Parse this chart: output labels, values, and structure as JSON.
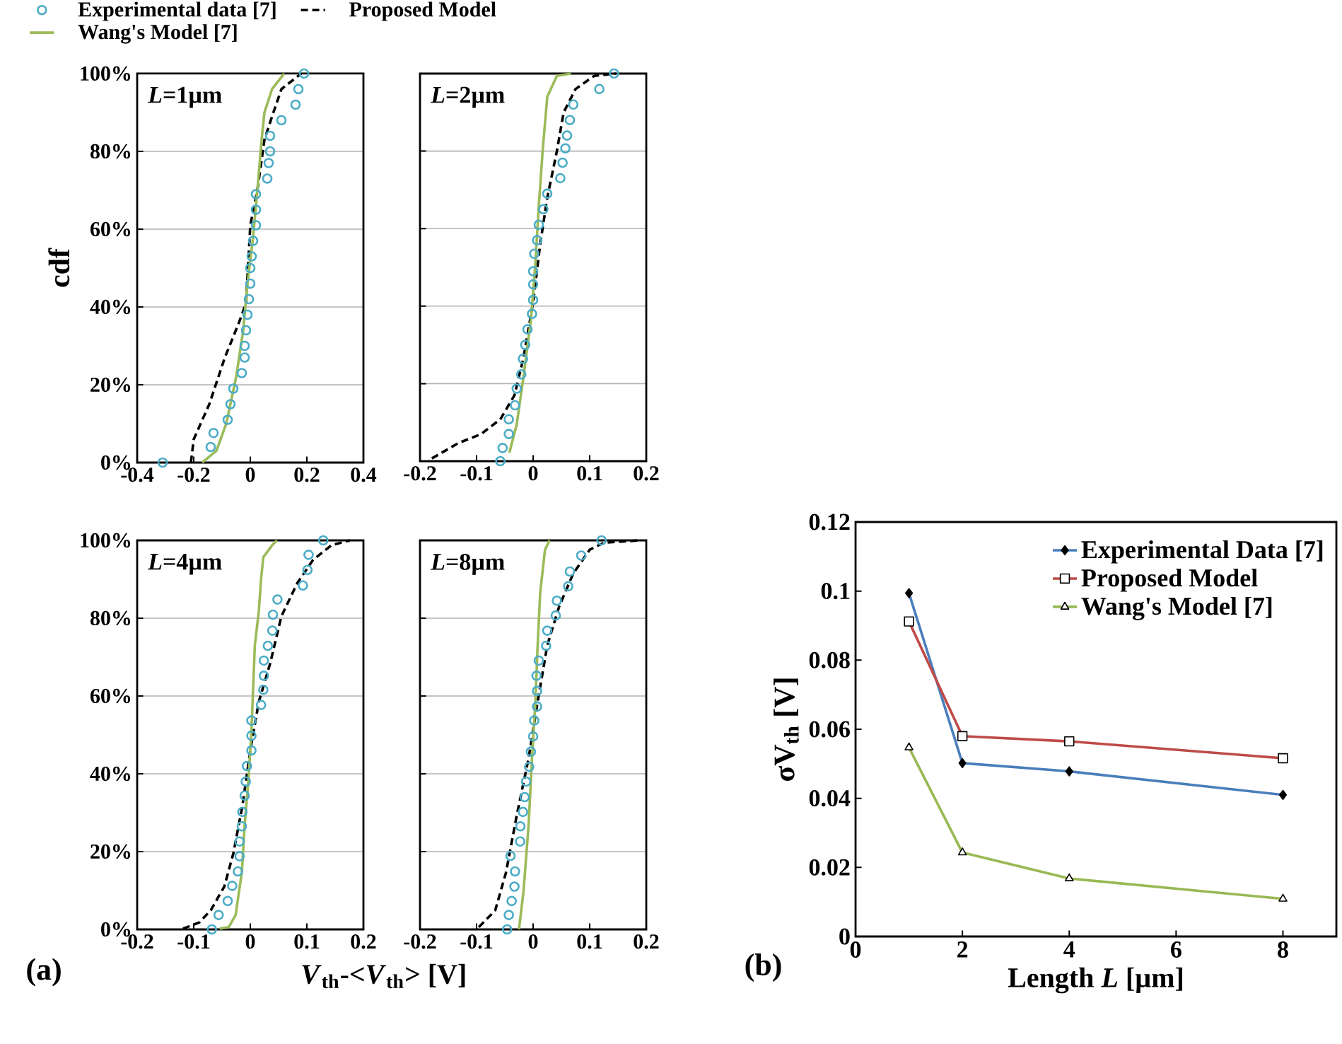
{
  "chart_data": [
    {
      "type": "scatter",
      "ylabel": "cdf",
      "annotations": [
        "*L*=1µm"
      ],
      "legend": "top",
      "grid": "y",
      "xlim": [
        -0.4,
        0.4
      ],
      "xticks": [
        -0.4,
        -0.2,
        0,
        0.2,
        0.4
      ],
      "ylim": [
        0,
        100
      ],
      "yticks": [
        {
          "value": 0,
          "label": "0%"
        },
        {
          "value": 20,
          "label": "20%"
        },
        {
          "value": 40,
          "label": "40%"
        },
        {
          "value": 60,
          "label": "60%"
        },
        {
          "value": 80,
          "label": "80%"
        },
        {
          "value": 100,
          "label": "100%"
        }
      ],
      "series": [
        {
          "name": "Experimental data [7]",
          "type": "scatter",
          "marker": "circle",
          "color": "#4bacc6",
          "x": [
            -0.31,
            -0.14,
            -0.13,
            -0.08,
            -0.07,
            -0.06,
            -0.03,
            -0.02,
            -0.02,
            -0.015,
            -0.01,
            -0.005,
            0,
            0,
            0.005,
            0.01,
            0.02,
            0.02,
            0.02,
            0.06,
            0.065,
            0.07,
            0.07,
            0.11,
            0.16,
            0.17,
            0.19
          ],
          "values": [
            0,
            4,
            7.6,
            11,
            15,
            19,
            23,
            27,
            30,
            34,
            38,
            42,
            46,
            50,
            53,
            57,
            61,
            65,
            69,
            73,
            77,
            80,
            84,
            88,
            92,
            96,
            100
          ]
        },
        {
          "name": "Proposed Model",
          "type": "line",
          "line_style": "dashed",
          "color": "#000000",
          "x": [
            -0.21,
            -0.2,
            -0.145,
            -0.09,
            -0.04,
            -0.015,
            0,
            0.025,
            0.05,
            0.077,
            0.11,
            0.145,
            0.18
          ],
          "values": [
            0,
            6,
            15,
            27,
            36,
            41,
            61,
            70,
            83,
            89,
            96,
            98,
            100
          ]
        },
        {
          "name": "Wang's Model [7]",
          "type": "line",
          "line_style": "solid",
          "color": "#9bbb59",
          "x": [
            -0.17,
            -0.12,
            -0.085,
            -0.05,
            -0.025,
            -0.01,
            0.01,
            0.025,
            0.04,
            0.05,
            0.077,
            0.12
          ],
          "values": [
            0,
            3,
            10,
            22,
            34,
            46,
            58,
            70,
            83,
            90,
            96,
            100
          ]
        }
      ]
    },
    {
      "type": "scatter",
      "annotations": [
        "*L*=2µm"
      ],
      "grid": "y",
      "tick_labels": "x",
      "xlim": [
        -0.2,
        0.2
      ],
      "xticks": [
        -0.2,
        -0.1,
        0,
        0.1,
        0.2
      ],
      "ylim": [
        0,
        100
      ],
      "yticks": [
        0,
        20,
        40,
        60,
        80,
        100
      ],
      "series": [
        {
          "type": "scatter",
          "marker": "circle",
          "color": "#4bacc6",
          "x": [
            -0.058,
            -0.054,
            -0.043,
            -0.043,
            -0.032,
            -0.029,
            -0.021,
            -0.018,
            -0.014,
            -0.01,
            -0.002,
            0,
            0,
            0,
            0.002,
            0.007,
            0.01,
            0.018,
            0.025,
            0.048,
            0.052,
            0.057,
            0.06,
            0.065,
            0.071,
            0.117,
            0.143
          ],
          "values": [
            0,
            3.4,
            7,
            10.8,
            14.4,
            18.7,
            22.4,
            26.4,
            30,
            34,
            38,
            41.6,
            45.6,
            49,
            53.5,
            57,
            61,
            65,
            69,
            73,
            77,
            80.7,
            84,
            88,
            92,
            96,
            100
          ]
        },
        {
          "type": "line",
          "line_style": "dashed",
          "color": "#000000",
          "x": [
            -0.179,
            -0.133,
            -0.092,
            -0.058,
            -0.033,
            -0.017,
            0,
            0.0125,
            0.025,
            0.042,
            0.054,
            0.075,
            0.108,
            0.146
          ],
          "values": [
            0.7,
            4.6,
            7,
            10.8,
            17,
            26.7,
            41,
            56,
            68,
            80,
            90,
            96,
            99.4,
            100
          ]
        },
        {
          "type": "line",
          "line_style": "solid",
          "color": "#9bbb59",
          "x": [
            -0.042,
            -0.029,
            -0.017,
            -0.004,
            0.004,
            0.01,
            0.017,
            0.025,
            0.042,
            0.067
          ],
          "values": [
            2.2,
            9.5,
            21.8,
            36.4,
            51,
            65.8,
            80.4,
            94,
            99.4,
            100
          ]
        }
      ]
    },
    {
      "type": "scatter",
      "xlabel": "*V*$_{th}$-<*V*$_{th}$> [V]",
      "annotations": [
        "*L*=4µm",
        "(a)"
      ],
      "grid": "y",
      "xlim": [
        -0.2,
        0.2
      ],
      "xticks": [
        -0.2,
        -0.1,
        0,
        0.1,
        0.2
      ],
      "ylim": [
        0,
        100
      ],
      "yticks": [
        {
          "value": 0,
          "label": "0%"
        },
        {
          "value": 20,
          "label": "20%"
        },
        {
          "value": 40,
          "label": "40%"
        },
        {
          "value": 60,
          "label": "60%"
        },
        {
          "value": 80,
          "label": "80%"
        },
        {
          "value": 100,
          "label": "100%"
        }
      ],
      "series": [
        {
          "type": "scatter",
          "marker": "circle",
          "color": "#4bacc6",
          "x": [
            -0.068,
            -0.056,
            -0.04,
            -0.032,
            -0.022,
            -0.019,
            -0.019,
            -0.015,
            -0.014,
            -0.01,
            -0.008,
            -0.006,
            0.002,
            0.002,
            0.002,
            0.019,
            0.023,
            0.024,
            0.024,
            0.031,
            0.039,
            0.04,
            0.048,
            0.093,
            0.101,
            0.103,
            0.129
          ],
          "values": [
            0,
            3.7,
            7.3,
            11.2,
            14.9,
            18.8,
            22.6,
            26.5,
            30.2,
            34.4,
            38,
            42,
            46,
            49.8,
            53.7,
            57.7,
            61.6,
            65.2,
            69.1,
            72.9,
            76.8,
            80.9,
            84.8,
            88.4,
            92.4,
            96.3,
            100
          ]
        },
        {
          "type": "line",
          "line_style": "dashed",
          "color": "#000000",
          "x": [
            -0.119,
            -0.09,
            -0.07,
            -0.046,
            -0.03,
            -0.014,
            0,
            0.015,
            0.035,
            0.055,
            0.083,
            0.111,
            0.144,
            0.176
          ],
          "values": [
            0.2,
            1.8,
            4.9,
            11,
            19.5,
            31.7,
            46,
            58.5,
            68.3,
            80.5,
            89,
            95,
            98.8,
            100
          ]
        },
        {
          "type": "line",
          "line_style": "solid",
          "color": "#9bbb59",
          "x": [
            -0.054,
            -0.038,
            -0.026,
            -0.015,
            -0.01,
            -0.003,
            0.002,
            0.005,
            0.008,
            0.015,
            0.019,
            0.023,
            0.039,
            0.047
          ],
          "values": [
            0.2,
            0.6,
            3.7,
            14.6,
            26.8,
            39,
            51,
            62,
            73,
            81.7,
            90,
            95.7,
            98.8,
            100
          ]
        }
      ]
    },
    {
      "type": "scatter",
      "annotations": [
        "*L*=8µm"
      ],
      "grid": "y",
      "tick_labels": "x",
      "xlim": [
        -0.2,
        0.2
      ],
      "xticks": [
        -0.2,
        -0.1,
        0,
        0.1,
        0.2
      ],
      "ylim": [
        0,
        100
      ],
      "yticks": [
        0,
        20,
        40,
        60,
        80,
        100
      ],
      "series": [
        {
          "type": "scatter",
          "marker": "circle",
          "color": "#4bacc6",
          "x": [
            -0.046,
            -0.043,
            -0.038,
            -0.033,
            -0.032,
            -0.04,
            -0.023,
            -0.0225,
            -0.018,
            -0.015,
            -0.0125,
            -0.007,
            -0.004,
            0,
            0.002,
            0.007,
            0.007,
            0.006,
            0.01,
            0.023,
            0.025,
            0.04,
            0.042,
            0.062,
            0.065,
            0.085,
            0.121
          ],
          "values": [
            0,
            3.7,
            7.3,
            11,
            14.9,
            18.9,
            22.6,
            26.5,
            30.2,
            34,
            38,
            41.8,
            45.7,
            49.6,
            53.7,
            57.3,
            61.3,
            65.2,
            69.1,
            72.9,
            76.8,
            80.7,
            84.5,
            88.2,
            92,
            96.1,
            100
          ]
        },
        {
          "type": "line",
          "line_style": "dashed",
          "color": "#000000",
          "x": [
            -0.096,
            -0.067,
            -0.048,
            -0.029,
            -0.008,
            0.008,
            0.025,
            0.046,
            0.071,
            0.1,
            0.125,
            0.188
          ],
          "values": [
            0.6,
            4.9,
            14.6,
            29.3,
            44,
            58.5,
            73,
            83,
            91.5,
            97.6,
            99.4,
            100
          ]
        },
        {
          "type": "line",
          "line_style": "solid",
          "color": "#9bbb59",
          "x": [
            -0.025,
            -0.017,
            -0.008,
            -0.002,
            0.004,
            0.008,
            0.0125,
            0.021,
            0.029
          ],
          "values": [
            0,
            9.8,
            26.8,
            43.9,
            58.5,
            73,
            86.6,
            97.6,
            100
          ]
        }
      ]
    },
    {
      "type": "line",
      "xlabel": "Length *L* [µm]",
      "ylabel": "σV$_{th}$ [V]",
      "annotations": [
        "(b)"
      ],
      "legend": "top right",
      "x": [
        1,
        2,
        4,
        8
      ],
      "xlim": [
        0,
        9
      ],
      "xticks": [
        0,
        2,
        4,
        6,
        8
      ],
      "ylim": [
        0,
        0.12
      ],
      "yticks": [
        0,
        0.02,
        0.04,
        0.06,
        0.08,
        0.1,
        0.12
      ],
      "series": [
        {
          "name": "Experimental Data [7]",
          "color": "#4a7ebb",
          "marker": "diamond",
          "values": [
            0.0994,
            0.0502,
            0.0478,
            0.041
          ]
        },
        {
          "name": "Proposed Model",
          "color": "#be4b48",
          "marker": "square",
          "values": [
            0.0912,
            0.058,
            0.0565,
            0.0516
          ]
        },
        {
          "name": "Wang's Model [7]",
          "color": "#98b954",
          "marker": "triangle",
          "values": [
            0.0547,
            0.0243,
            0.0168,
            0.0109
          ]
        }
      ]
    }
  ]
}
